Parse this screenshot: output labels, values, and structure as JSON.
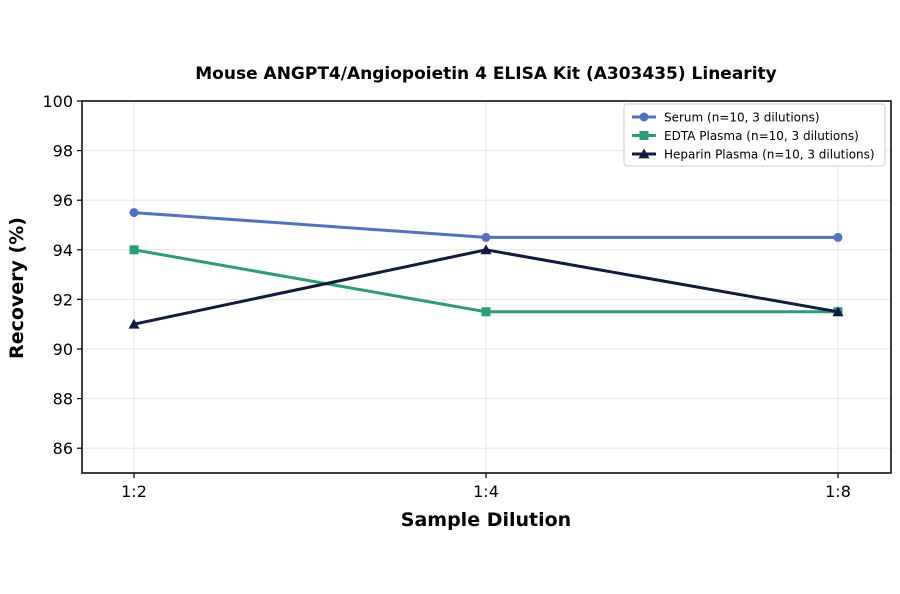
{
  "chart_data": {
    "type": "line",
    "title": "Mouse ANGPT4/Angiopoietin 4 ELISA Kit (A303435) Linearity",
    "xlabel": "Sample Dilution",
    "ylabel": "Recovery (%)",
    "categories": [
      "1:2",
      "1:4",
      "1:8"
    ],
    "ylim": [
      85,
      100
    ],
    "yticks": [
      86,
      88,
      90,
      92,
      94,
      96,
      98,
      100
    ],
    "grid": true,
    "legend_position": "top-right",
    "series": [
      {
        "name": "Serum (n=10, 3 dilutions)",
        "values": [
          95.5,
          94.5,
          94.5
        ],
        "color": "#5470c6",
        "marker": "circle"
      },
      {
        "name": "EDTA Plasma (n=10, 3 dilutions)",
        "values": [
          94.0,
          91.5,
          91.5
        ],
        "color": "#2a9d78",
        "marker": "square"
      },
      {
        "name": "Heparin Plasma (n=10, 3 dilutions)",
        "values": [
          91.0,
          94.0,
          91.5
        ],
        "color": "#0f1c3f",
        "marker": "triangle"
      }
    ]
  }
}
